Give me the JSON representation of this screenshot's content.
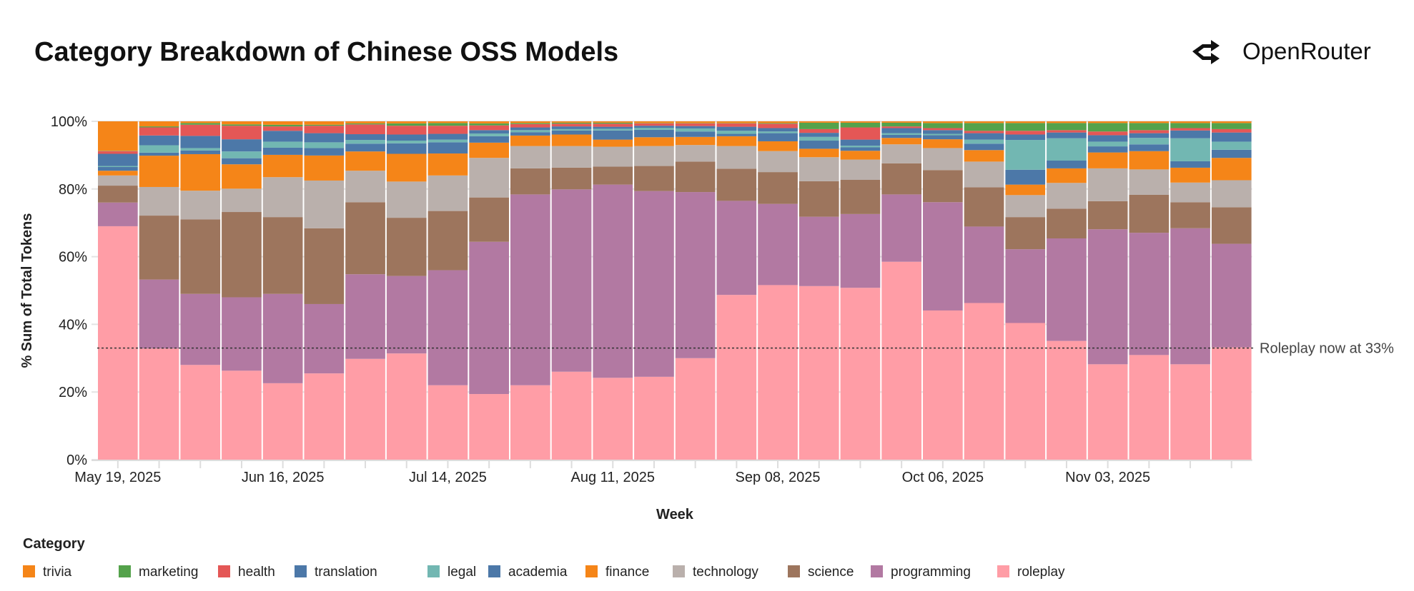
{
  "header": {
    "title": "Category Breakdown of Chinese OSS Models",
    "brand": "OpenRouter",
    "brand_icon": "openrouter-logo-icon"
  },
  "chart_data": {
    "type": "bar",
    "stacked": true,
    "normalized": true,
    "title": "Category Breakdown of Chinese OSS Models",
    "xlabel": "Week",
    "ylabel": "% Sum of Total Tokens",
    "ylim": [
      0,
      100
    ],
    "y_ticks": [
      "0%",
      "20%",
      "40%",
      "60%",
      "80%",
      "100%"
    ],
    "x_tick_labels": [
      "May 19, 2025",
      "Jun 16, 2025",
      "Jul 14, 2025",
      "Aug 11, 2025",
      "Sep 08, 2025",
      "Oct 06, 2025",
      "Nov 03, 2025"
    ],
    "x": [
      "2025-05-19",
      "2025-05-26",
      "2025-06-02",
      "2025-06-09",
      "2025-06-16",
      "2025-06-23",
      "2025-06-30",
      "2025-07-07",
      "2025-07-14",
      "2025-07-21",
      "2025-07-28",
      "2025-08-04",
      "2025-08-11",
      "2025-08-18",
      "2025-08-25",
      "2025-09-01",
      "2025-09-08",
      "2025-09-15",
      "2025-09-22",
      "2025-09-29",
      "2025-10-06",
      "2025-10-13",
      "2025-10-20",
      "2025-10-27",
      "2025-11-03",
      "2025-11-10",
      "2025-11-17",
      "2025-11-24"
    ],
    "grid": "horizontal",
    "legend_title": "Category",
    "legend_position": "bottom-left",
    "series": [
      {
        "name": "roleplay",
        "color": "#FF9DA6",
        "values": [
          69,
          33,
          28,
          26.3,
          22.6,
          25.5,
          29.8,
          31.4,
          22,
          19.4,
          22,
          26,
          24.2,
          24.5,
          30,
          48.7,
          51.6,
          51.3,
          50.8,
          58.5,
          44.1,
          46.3,
          40.4,
          35.1,
          28.2,
          30.9,
          28.2,
          33.2
        ]
      },
      {
        "name": "programming",
        "color": "#B279A2",
        "values": [
          7,
          20.5,
          21,
          21.7,
          26.4,
          20.5,
          25,
          22.9,
          34,
          45,
          56.4,
          53.9,
          57.1,
          54.9,
          49.1,
          27.8,
          24,
          20.5,
          21.8,
          19.9,
          32,
          22.6,
          21.8,
          30.3,
          39.9,
          36.1,
          40.2,
          30.6
        ]
      },
      {
        "name": "science",
        "color": "#9D755D",
        "values": [
          5,
          19,
          22,
          25.2,
          22.7,
          22.4,
          21.3,
          17.2,
          17.5,
          13.1,
          7.7,
          6.4,
          5.3,
          7.4,
          9,
          9.5,
          9.4,
          10.5,
          10.1,
          9.2,
          9.5,
          11.6,
          9.5,
          8.8,
          8.3,
          11.2,
          7.7,
          10.8
        ]
      },
      {
        "name": "technology",
        "color": "#BAB0AC",
        "values": [
          3,
          8.5,
          8.5,
          6.9,
          11.8,
          14.1,
          9.3,
          10.7,
          10.5,
          11.7,
          6.6,
          6.4,
          5.9,
          5.9,
          4.9,
          6.7,
          6.2,
          7.1,
          6,
          5.6,
          6.5,
          7.6,
          6.5,
          7.6,
          9.7,
          7.5,
          5.8,
          8
        ]
      },
      {
        "name": "finance",
        "color": "#F58518",
        "values": [
          1.4,
          9.3,
          10.8,
          7.2,
          6.6,
          7.4,
          5.7,
          8.2,
          6.5,
          4.5,
          3.1,
          3.4,
          2.1,
          2.6,
          2.4,
          2.9,
          2.9,
          2.5,
          2.6,
          1.9,
          2.6,
          3.4,
          3.1,
          4.3,
          4.7,
          5.4,
          4.4,
          6.6
        ]
      },
      {
        "name": "academia",
        "color": "#4C78A8",
        "values": [
          1.1,
          0.9,
          1.1,
          1.8,
          2.1,
          2.2,
          2.3,
          3.1,
          3.3,
          1.9,
          1,
          1.2,
          2.7,
          2.2,
          1.6,
          0.7,
          2.4,
          2.4,
          1,
          0.9,
          1.2,
          1.9,
          4.4,
          2.3,
          1.8,
          2,
          1.9,
          2.4
        ]
      },
      {
        "name": "legal",
        "color": "#72B7B2",
        "values": [
          0.3,
          2.2,
          0.7,
          2,
          1.8,
          1.7,
          1.1,
          0.8,
          0.8,
          0.8,
          0.6,
          0.4,
          0.5,
          0.6,
          0.9,
          0.9,
          0.5,
          1.1,
          0.5,
          0.5,
          0.4,
          1.2,
          8.8,
          6.6,
          1.4,
          1.9,
          6.8,
          2.4
        ]
      },
      {
        "name": "translation",
        "color": "#4C78A8",
        "values": [
          3.6,
          2.9,
          3.6,
          3.6,
          3.2,
          2.7,
          1.7,
          1.8,
          1.7,
          1,
          0.8,
          0.8,
          0.6,
          0.6,
          0.7,
          1.2,
          1,
          1.2,
          1.8,
          1.5,
          1.1,
          1.9,
          1.6,
          1.7,
          1.9,
          1.4,
          2.3,
          2.7
        ]
      },
      {
        "name": "health",
        "color": "#E45756",
        "values": [
          0.8,
          2.4,
          3.3,
          4,
          1.3,
          2.2,
          2.9,
          2.6,
          2.4,
          1.4,
          1,
          0.8,
          0.9,
          0.7,
          0.8,
          1,
          1.3,
          1.1,
          3.6,
          0.5,
          0.6,
          0.7,
          1.1,
          0.7,
          1.1,
          0.9,
          0.7,
          1
        ]
      },
      {
        "name": "marketing",
        "color": "#54A24B",
        "values": [
          0.1,
          0.3,
          0.5,
          0.4,
          0.5,
          0.3,
          0.3,
          0.7,
          0.8,
          0.6,
          0.3,
          0.3,
          0.3,
          0.1,
          0.1,
          0.1,
          0.2,
          1.9,
          1.4,
          1.1,
          1.5,
          2.3,
          2.3,
          2.1,
          2.5,
          2.1,
          1.5,
          1.8
        ]
      },
      {
        "name": "trivia",
        "color": "#F58518",
        "values": [
          8.7,
          1.5,
          0.5,
          0.9,
          1,
          1,
          0.6,
          0.6,
          0.5,
          0.6,
          0.5,
          0.4,
          0.4,
          0.5,
          0.5,
          0.5,
          0.5,
          0.4,
          0.4,
          0.4,
          0.5,
          0.5,
          0.5,
          0.5,
          0.5,
          0.5,
          0.5,
          0.5
        ]
      }
    ],
    "legend_order": [
      "trivia",
      "marketing",
      "health",
      "translation",
      "legal",
      "academia",
      "finance",
      "technology",
      "science",
      "programming",
      "roleplay"
    ],
    "annotation": {
      "text": "Roleplay now at 33%",
      "y": 33,
      "style": "dashed"
    }
  }
}
